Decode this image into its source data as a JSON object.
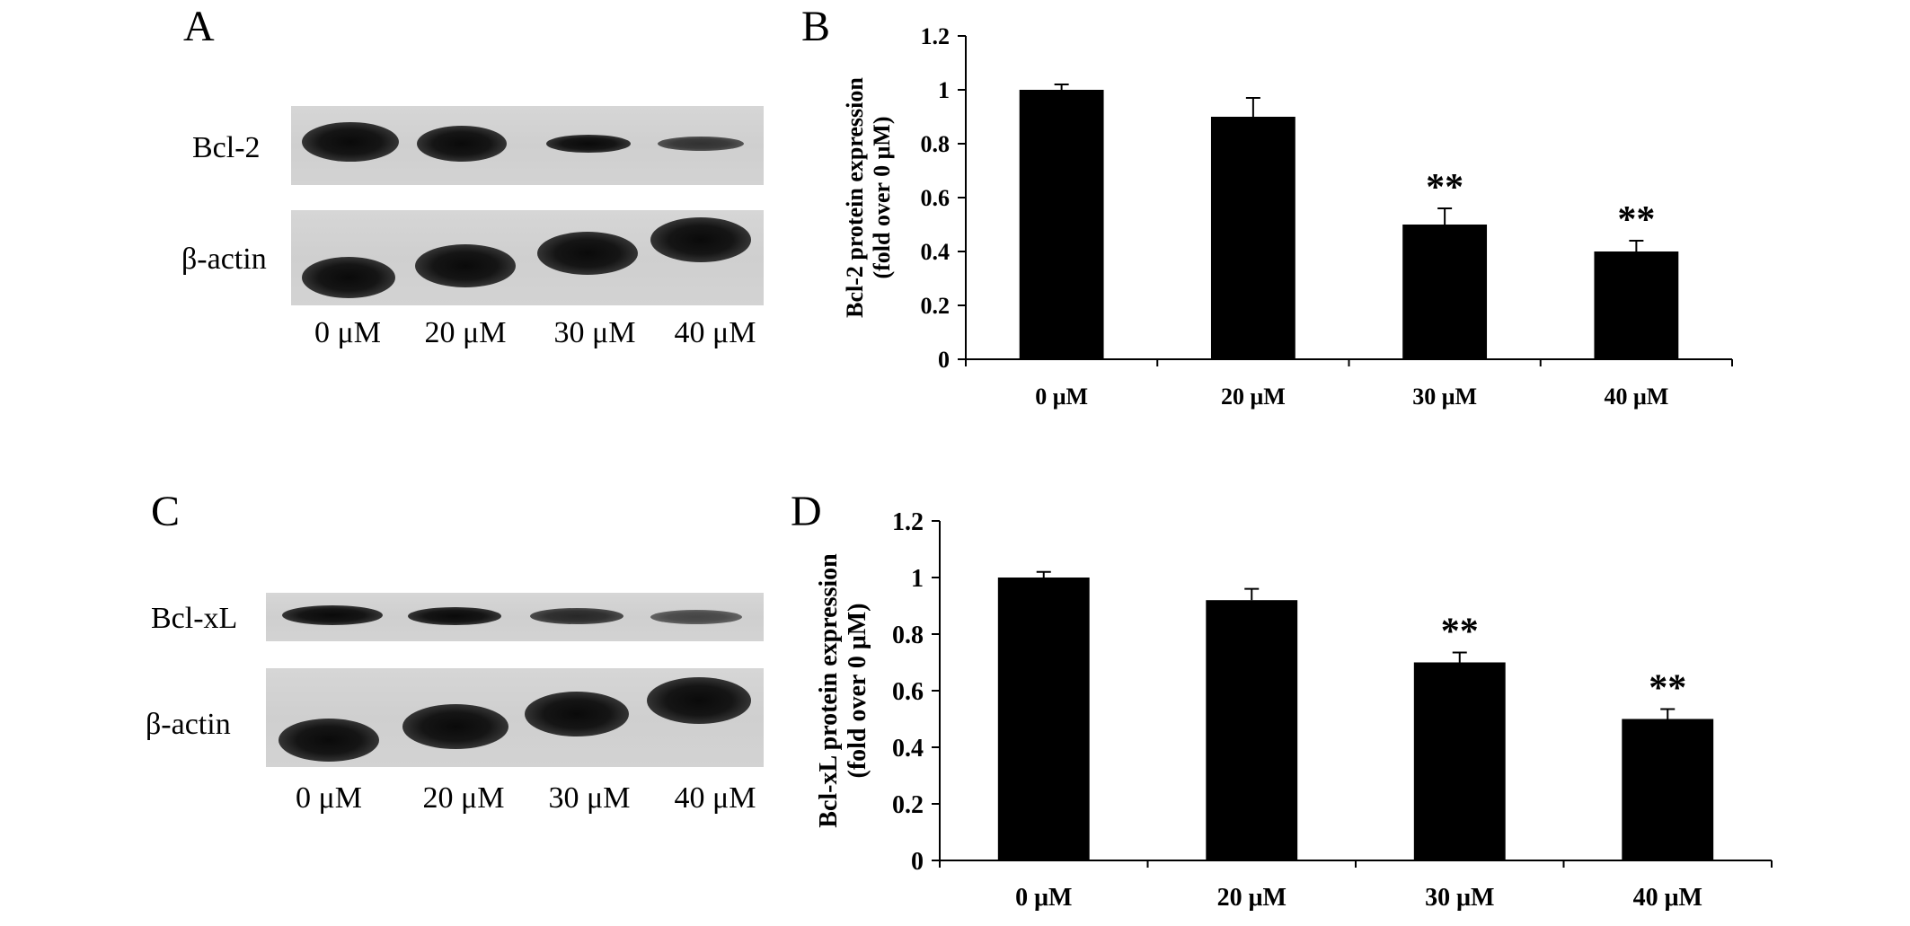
{
  "panels": {
    "A": {
      "letter": "A",
      "target_label": "Bcl-2",
      "control_label": "β-actin",
      "lanes": [
        "0 μM",
        "20 μM",
        "30 μM",
        "40 μM"
      ]
    },
    "C": {
      "letter": "C",
      "target_label": "Bcl-xL",
      "control_label": "β-actin",
      "lanes": [
        "0 μM",
        "20 μM",
        "30 μM",
        "40 μM"
      ]
    },
    "B": {
      "letter": "B"
    },
    "D": {
      "letter": "D"
    }
  },
  "chart_data": [
    {
      "panel": "B",
      "type": "bar",
      "categories": [
        "0 μM",
        "20 μM",
        "30 μM",
        "40 μM"
      ],
      "values": [
        1.0,
        0.9,
        0.5,
        0.4
      ],
      "errors": [
        0.02,
        0.07,
        0.06,
        0.04
      ],
      "annotations": [
        "",
        "",
        "**",
        "**"
      ],
      "ylabel_line1": "Bcl-2 protein expression",
      "ylabel_line2": "(fold over 0 μM)",
      "xlabel": "",
      "ylim": [
        0,
        1.2
      ],
      "yticks": [
        "0",
        "0.2",
        "0.4",
        "0.6",
        "0.8",
        "1",
        "1.2"
      ],
      "bar_color": "#000000",
      "grid": false
    },
    {
      "panel": "D",
      "type": "bar",
      "categories": [
        "0 μM",
        "20 μM",
        "30 μM",
        "40 μM"
      ],
      "values": [
        1.0,
        0.92,
        0.7,
        0.5
      ],
      "errors": [
        0.02,
        0.04,
        0.035,
        0.035
      ],
      "annotations": [
        "",
        "",
        "**",
        "**"
      ],
      "ylabel_line1": "Bcl-xL protein expression",
      "ylabel_line2": "(fold over 0 μM)",
      "xlabel": "",
      "ylim": [
        0,
        1.2
      ],
      "yticks": [
        "0",
        "0.2",
        "0.4",
        "0.6",
        "0.8",
        "1",
        "1.2"
      ],
      "bar_color": "#000000",
      "grid": false
    }
  ]
}
